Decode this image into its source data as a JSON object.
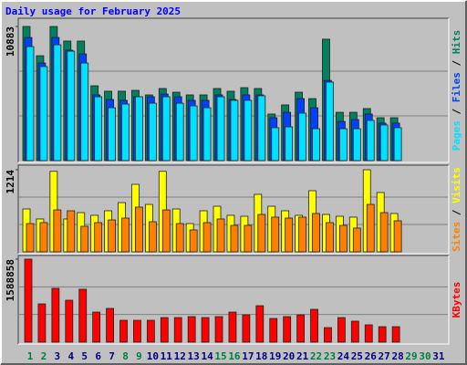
{
  "title": "Daily usage for February 2025",
  "chart_data": [
    {
      "type": "bar",
      "legend_separator": " / ",
      "ylim": [
        0,
        10883
      ],
      "yticks": [
        10883
      ],
      "series": [
        {
          "name": "Hits",
          "color": "#00805c",
          "values": [
            10883,
            8510,
            10880,
            9700,
            9700,
            6070,
            5630,
            5630,
            5700,
            5330,
            5850,
            5550,
            5330,
            5330,
            5850,
            5630,
            5920,
            5850,
            3780,
            4520,
            5550,
            5030,
            9850,
            3920,
            3920,
            4220,
            3480,
            3480,
            null,
            null,
            null
          ]
        },
        {
          "name": "Files",
          "color": "#0040ff",
          "values": [
            9990,
            7920,
            9990,
            8960,
            8660,
            5330,
            4960,
            4890,
            5180,
            5180,
            5400,
            5180,
            4890,
            4890,
            5330,
            4960,
            5330,
            5330,
            3480,
            3920,
            5030,
            4290,
            6500,
            3180,
            3330,
            3780,
            3040,
            3040,
            null,
            null,
            null
          ]
        },
        {
          "name": "Pages",
          "color": "#00e0ff",
          "values": [
            9250,
            7630,
            9400,
            8880,
            7920,
            5180,
            4290,
            4590,
            5180,
            4660,
            5180,
            4660,
            4440,
            4290,
            5180,
            4890,
            4890,
            5260,
            2670,
            2740,
            3850,
            2590,
            6370,
            2590,
            2590,
            3260,
            2890,
            2670,
            null,
            null,
            null
          ]
        }
      ]
    },
    {
      "type": "bar",
      "legend_separator": " / ",
      "ylim": [
        0,
        1214
      ],
      "yticks": [
        1214
      ],
      "series": [
        {
          "name": "Visits",
          "color": "#ffff00",
          "values": [
            634,
            486,
            1190,
            486,
            580,
            540,
            607,
            728,
            998,
            701,
            1190,
            634,
            418,
            607,
            674,
            540,
            526,
            850,
            674,
            607,
            540,
            904,
            553,
            526,
            513,
            1214,
            877,
            567,
            null,
            null,
            null
          ]
        },
        {
          "name": "Sites",
          "color": "#ff8000",
          "values": [
            418,
            432,
            620,
            607,
            378,
            432,
            472,
            499,
            661,
            445,
            620,
            418,
            324,
            432,
            486,
            391,
            391,
            553,
            513,
            499,
            513,
            567,
            432,
            391,
            351,
            701,
            580,
            459,
            null,
            null,
            null
          ]
        }
      ]
    },
    {
      "type": "bar",
      "ylim": [
        0,
        1588858
      ],
      "yticks": [
        1588858
      ],
      "categories": [
        "1",
        "2",
        "3",
        "4",
        "5",
        "6",
        "7",
        "8",
        "9",
        "10",
        "11",
        "12",
        "13",
        "14",
        "15",
        "16",
        "17",
        "18",
        "19",
        "20",
        "21",
        "22",
        "23",
        "24",
        "25",
        "26",
        "27",
        "28",
        "29",
        "30",
        "31"
      ],
      "category_colors": [
        "#008040",
        "#008040",
        "#000080",
        "#000080",
        "#000080",
        "#000080",
        "#000080",
        "#008040",
        "#008040",
        "#000080",
        "#000080",
        "#000080",
        "#000080",
        "#000080",
        "#008040",
        "#008040",
        "#000080",
        "#000080",
        "#000080",
        "#000080",
        "#000080",
        "#008040",
        "#008040",
        "#000080",
        "#000080",
        "#000080",
        "#000080",
        "#000080",
        "#008040",
        "#008040",
        "#000080"
      ],
      "series": [
        {
          "name": "KBytes",
          "color": "#ff0000",
          "values": [
            1588858,
            733000,
            1030000,
            803000,
            1013000,
            576000,
            646000,
            419000,
            419000,
            419000,
            471000,
            471000,
            489000,
            471000,
            489000,
            576000,
            524000,
            698000,
            454000,
            489000,
            524000,
            629000,
            279000,
            471000,
            402000,
            332000,
            297000,
            297000,
            null,
            null,
            null
          ]
        }
      ]
    }
  ]
}
